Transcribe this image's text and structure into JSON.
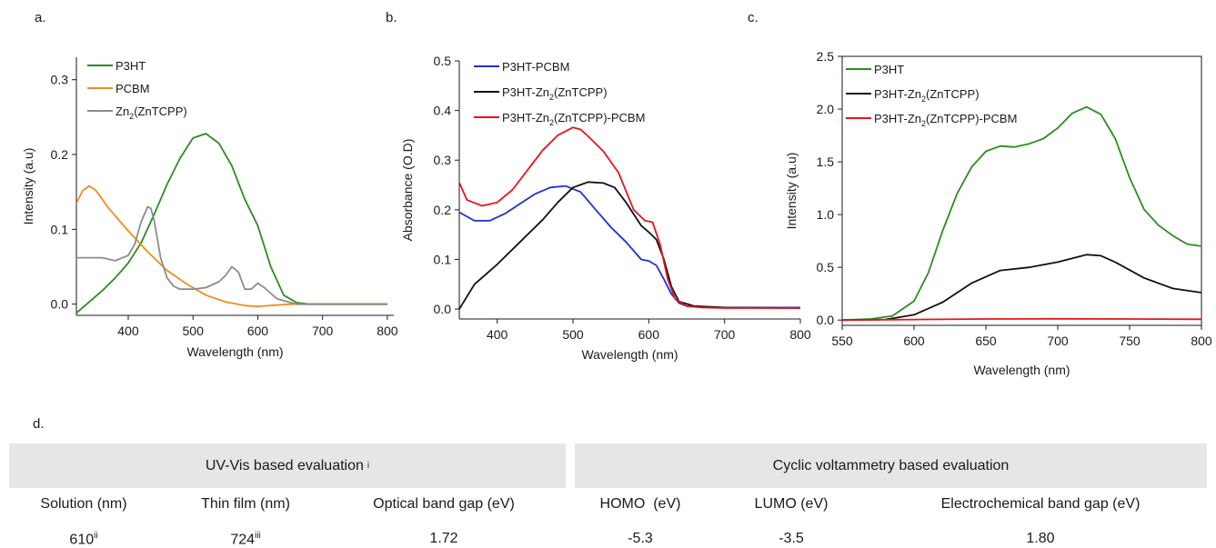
{
  "panels": {
    "a": {
      "label": "a."
    },
    "b": {
      "label": "b."
    },
    "c": {
      "label": "c."
    },
    "d": {
      "label": "d."
    }
  },
  "chart_data": [
    {
      "id": "a",
      "type": "line",
      "xlabel": "Wavelength (nm)",
      "ylabel": "Intensity (a.u)",
      "xlim": [
        320,
        810
      ],
      "ylim": [
        -0.015,
        0.33
      ],
      "xticks": [
        400,
        500,
        600,
        700,
        800
      ],
      "yticks": [
        0.0,
        0.1,
        0.2,
        0.3
      ],
      "ytick_labels": [
        "0.0",
        "0.1",
        "0.2",
        "0.3"
      ],
      "legend_position": "top-left",
      "series": [
        {
          "name": "P3HT",
          "color": "#2e8b22",
          "x": [
            320,
            340,
            360,
            380,
            400,
            420,
            440,
            460,
            480,
            500,
            520,
            540,
            560,
            580,
            600,
            620,
            640,
            660,
            680,
            700,
            750,
            800
          ],
          "y": [
            -0.012,
            0.003,
            0.018,
            0.035,
            0.055,
            0.082,
            0.12,
            0.16,
            0.195,
            0.222,
            0.228,
            0.215,
            0.185,
            0.14,
            0.105,
            0.05,
            0.012,
            0.002,
            0.0,
            0.0,
            0.0,
            0.0
          ]
        },
        {
          "name": "PCBM",
          "color": "#f28c1e",
          "x": [
            320,
            330,
            340,
            350,
            370,
            400,
            430,
            460,
            490,
            520,
            550,
            580,
            600,
            650,
            700,
            800
          ],
          "y": [
            0.135,
            0.152,
            0.158,
            0.152,
            0.128,
            0.098,
            0.07,
            0.045,
            0.027,
            0.012,
            0.003,
            -0.002,
            -0.003,
            0.0,
            0.0,
            0.0
          ]
        },
        {
          "name": "Zn2(ZnTCPP)",
          "color": "#8c8c8c",
          "x": [
            320,
            340,
            360,
            380,
            400,
            410,
            420,
            430,
            435,
            440,
            450,
            460,
            470,
            480,
            500,
            520,
            540,
            550,
            560,
            570,
            580,
            590,
            600,
            610,
            630,
            660,
            700,
            800
          ],
          "y": [
            0.062,
            0.062,
            0.062,
            0.058,
            0.065,
            0.08,
            0.11,
            0.13,
            0.128,
            0.112,
            0.062,
            0.035,
            0.024,
            0.02,
            0.02,
            0.022,
            0.03,
            0.038,
            0.05,
            0.043,
            0.02,
            0.02,
            0.028,
            0.022,
            0.007,
            0.0,
            0.0,
            0.0
          ]
        }
      ]
    },
    {
      "id": "b",
      "type": "line",
      "xlabel": "Wavelength (nm)",
      "ylabel": "Absorbance (O.D)",
      "xlim": [
        350,
        800
      ],
      "ylim": [
        -0.02,
        0.5
      ],
      "xticks": [
        400,
        500,
        600,
        700,
        800
      ],
      "yticks": [
        0.0,
        0.1,
        0.2,
        0.3,
        0.4,
        0.5
      ],
      "ytick_labels": [
        "0.0",
        "0.1",
        "0.2",
        "0.3",
        "0.4",
        "0.5"
      ],
      "legend_position": "top-left",
      "series": [
        {
          "name": "P3HT-PCBM",
          "color": "#1f2fd6",
          "x": [
            350,
            370,
            390,
            410,
            430,
            450,
            470,
            490,
            510,
            530,
            550,
            570,
            590,
            600,
            610,
            620,
            630,
            640,
            650,
            670,
            700,
            800
          ],
          "y": [
            0.195,
            0.178,
            0.178,
            0.192,
            0.212,
            0.232,
            0.245,
            0.248,
            0.236,
            0.2,
            0.165,
            0.135,
            0.1,
            0.097,
            0.088,
            0.06,
            0.03,
            0.012,
            0.006,
            0.004,
            0.003,
            0.003
          ]
        },
        {
          "name": "P3HT-Zn2(ZnTCPP)",
          "color": "#111111",
          "x": [
            350,
            370,
            400,
            430,
            460,
            480,
            500,
            520,
            540,
            555,
            570,
            590,
            600,
            610,
            620,
            630,
            640,
            660,
            700,
            800
          ],
          "y": [
            0.0,
            0.05,
            0.09,
            0.135,
            0.18,
            0.215,
            0.245,
            0.256,
            0.254,
            0.245,
            0.215,
            0.168,
            0.155,
            0.14,
            0.1,
            0.045,
            0.015,
            0.006,
            0.003,
            0.002
          ]
        },
        {
          "name": "P3HT-Zn2(ZnTCPP)-PCBM",
          "color": "#e8141c",
          "x": [
            350,
            360,
            380,
            400,
            420,
            440,
            460,
            480,
            500,
            510,
            520,
            540,
            560,
            580,
            595,
            605,
            615,
            625,
            635,
            650,
            670,
            700,
            800
          ],
          "y": [
            0.255,
            0.22,
            0.208,
            0.215,
            0.24,
            0.28,
            0.32,
            0.35,
            0.366,
            0.362,
            0.348,
            0.318,
            0.275,
            0.2,
            0.178,
            0.175,
            0.13,
            0.06,
            0.02,
            0.006,
            0.003,
            0.002,
            0.002
          ]
        }
      ]
    },
    {
      "id": "c",
      "type": "line",
      "xlabel": "Wavelength (nm)",
      "ylabel": "Intensity (a.u)",
      "xlim": [
        550,
        800
      ],
      "ylim": [
        -0.05,
        2.5
      ],
      "xticks": [
        550,
        600,
        650,
        700,
        750,
        800
      ],
      "yticks": [
        0.0,
        0.5,
        1.0,
        1.5,
        2.0,
        2.5
      ],
      "ytick_labels": [
        "0.0",
        "0.5",
        "1.0",
        "1.5",
        "2.0",
        "2.5"
      ],
      "legend_position": "top-left",
      "series": [
        {
          "name": "P3HT",
          "color": "#2e8b22",
          "x": [
            550,
            570,
            585,
            600,
            610,
            620,
            630,
            640,
            650,
            660,
            670,
            680,
            690,
            700,
            710,
            720,
            730,
            740,
            750,
            760,
            770,
            780,
            790,
            800
          ],
          "y": [
            0.0,
            0.01,
            0.04,
            0.18,
            0.45,
            0.85,
            1.2,
            1.45,
            1.6,
            1.65,
            1.64,
            1.67,
            1.72,
            1.82,
            1.96,
            2.02,
            1.95,
            1.72,
            1.35,
            1.05,
            0.9,
            0.8,
            0.72,
            0.7
          ]
        },
        {
          "name": "P3HT-Zn2(ZnTCPP)",
          "color": "#111111",
          "x": [
            550,
            580,
            600,
            620,
            640,
            660,
            680,
            700,
            720,
            730,
            740,
            760,
            780,
            800
          ],
          "y": [
            0.0,
            0.005,
            0.05,
            0.17,
            0.35,
            0.47,
            0.5,
            0.55,
            0.62,
            0.61,
            0.55,
            0.4,
            0.3,
            0.26
          ]
        },
        {
          "name": "P3HT-Zn2(ZnTCPP)-PCBM",
          "color": "#e8141c",
          "x": [
            550,
            600,
            650,
            700,
            750,
            800
          ],
          "y": [
            0.0,
            0.005,
            0.01,
            0.012,
            0.01,
            0.008
          ]
        }
      ]
    }
  ],
  "table": {
    "uv_header": "UV-Vis based evaluation",
    "uv_header_sup": "i",
    "cv_header": "Cyclic voltammetry based evaluation",
    "columns": [
      "Solution (nm)",
      "Thin film (nm)",
      "Optical band gap (eV)",
      "HOMO  (eV)",
      "LUMO (eV)",
      "Electrochemical band gap (eV)"
    ],
    "values": [
      "610",
      "724",
      "1.72",
      "-5.3",
      "-3.5",
      "1.80"
    ],
    "sups": [
      "ii",
      "iii",
      "",
      "",
      "",
      ""
    ]
  }
}
